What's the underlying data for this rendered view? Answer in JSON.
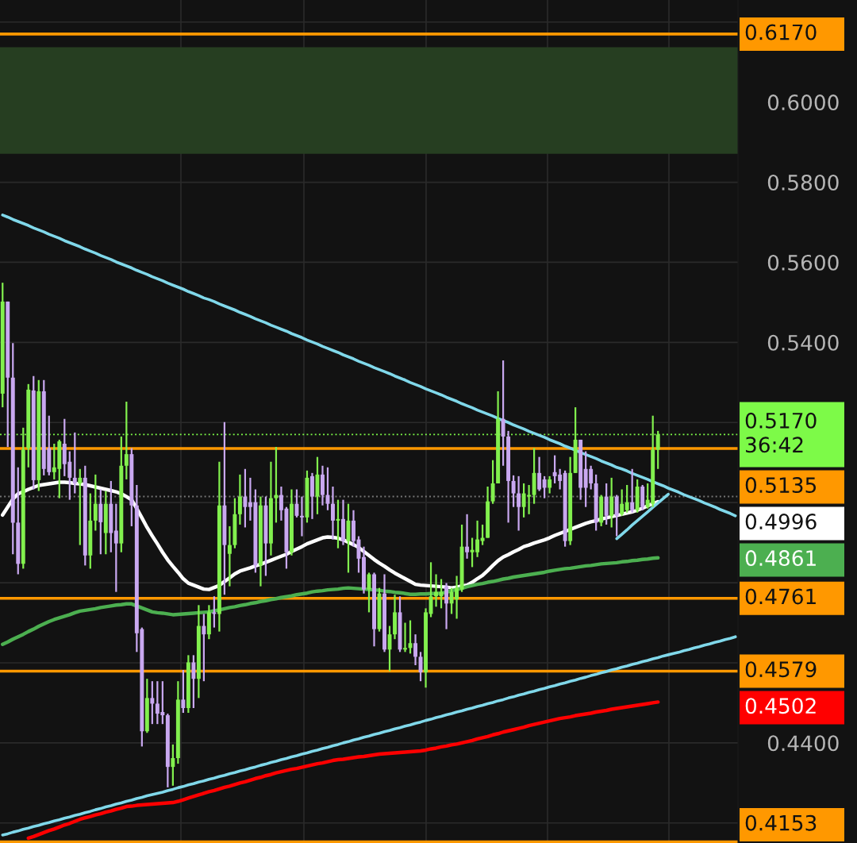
{
  "chart_data": {
    "type": "candlestick",
    "categories": [
      null,
      null,
      null,
      null,
      null,
      null,
      null,
      null,
      null,
      null,
      null,
      null,
      null,
      null,
      null,
      null,
      null,
      null,
      null,
      null,
      null,
      null,
      null,
      null,
      null,
      null,
      null,
      null,
      null,
      null,
      null,
      null,
      null,
      null,
      null,
      null,
      null,
      null,
      null,
      null,
      null,
      null,
      null,
      null,
      null,
      null,
      null,
      null,
      null,
      null,
      null,
      null,
      null,
      null,
      null,
      null,
      null,
      null,
      null,
      null,
      null,
      null,
      null,
      null,
      null,
      null,
      null,
      null,
      null,
      null,
      null,
      null,
      null,
      null,
      null,
      null,
      null,
      null,
      null,
      null,
      null,
      null,
      null,
      null,
      null,
      null,
      null,
      null,
      null,
      null,
      null,
      null,
      null,
      null,
      null,
      null,
      null,
      null,
      null,
      null,
      null,
      null,
      null,
      null,
      null,
      null,
      null,
      null,
      null,
      null,
      null,
      null,
      null,
      null,
      null,
      null,
      null,
      null,
      null,
      null,
      null,
      null,
      null,
      null,
      null,
      null,
      null,
      null,
      null,
      null,
      null,
      null,
      null,
      null,
      null,
      null,
      null,
      null,
      null,
      null,
      null,
      null,
      null
    ],
    "ohlc": [
      [
        0.5272,
        0.5549,
        0.5238,
        0.5502
      ],
      [
        0.5502,
        0.5502,
        0.5139,
        0.5312
      ],
      [
        0.5312,
        0.5398,
        0.4871,
        0.495
      ],
      [
        0.495,
        0.5088,
        0.4821,
        0.4847
      ],
      [
        0.4847,
        0.5187,
        0.4835,
        0.5132
      ],
      [
        0.5136,
        0.5296,
        0.5088,
        0.5282
      ],
      [
        0.528,
        0.5316,
        0.5033,
        0.5056
      ],
      [
        0.5056,
        0.5306,
        0.5029,
        0.5278
      ],
      [
        0.5278,
        0.5306,
        0.5068,
        0.5084
      ],
      [
        0.5136,
        0.5217,
        0.5068,
        0.5076
      ],
      [
        0.5076,
        0.5147,
        0.5058,
        0.5088
      ],
      [
        0.5084,
        0.5157,
        0.5011,
        0.5153
      ],
      [
        0.5147,
        0.5209,
        0.5066,
        0.5096
      ],
      [
        0.5102,
        0.5128,
        0.5007,
        0.5062
      ],
      [
        0.5062,
        0.5175,
        0.5023,
        0.5048
      ],
      [
        0.5048,
        0.5084,
        0.4894,
        0.5062
      ],
      [
        0.5062,
        0.5092,
        0.4843,
        0.4868
      ],
      [
        0.4868,
        0.5023,
        0.4835,
        0.4955
      ],
      [
        0.4955,
        0.507,
        0.493,
        0.4997
      ],
      [
        0.4997,
        0.5033,
        0.4871,
        0.4951
      ],
      [
        0.4924,
        0.5029,
        0.4871,
        0.4997
      ],
      [
        0.4997,
        0.5054,
        0.4876,
        0.4924
      ],
      [
        0.493,
        0.4997,
        0.4777,
        0.4898
      ],
      [
        0.4898,
        0.5165,
        0.4876,
        0.5092
      ],
      [
        0.5092,
        0.5252,
        0.5058,
        0.5121
      ],
      [
        0.5121,
        0.5136,
        0.4941,
        0.4993
      ],
      [
        0.4993,
        0.5044,
        0.4627,
        0.4674
      ],
      [
        0.4684,
        0.4688,
        0.4391,
        0.4429
      ],
      [
        0.4429,
        0.456,
        0.4425,
        0.4512
      ],
      [
        0.4512,
        0.4554,
        0.4447,
        0.4498
      ],
      [
        0.4498,
        0.4554,
        0.4447,
        0.4473
      ],
      [
        0.4477,
        0.4554,
        0.4447,
        0.4469
      ],
      [
        0.4469,
        0.4473,
        0.4289,
        0.434
      ],
      [
        0.434,
        0.4396,
        0.4293,
        0.4362
      ],
      [
        0.4362,
        0.4554,
        0.4348,
        0.4508
      ],
      [
        0.4508,
        0.4582,
        0.4475,
        0.4487
      ],
      [
        0.4487,
        0.4619,
        0.4475,
        0.4601
      ],
      [
        0.4601,
        0.4619,
        0.4487,
        0.456
      ],
      [
        0.456,
        0.4744,
        0.4512,
        0.4692
      ],
      [
        0.4692,
        0.4722,
        0.4554,
        0.4671
      ],
      [
        0.4671,
        0.4744,
        0.4659,
        0.4726
      ],
      [
        0.4726,
        0.4766,
        0.4688,
        0.4722
      ],
      [
        0.4722,
        0.5102,
        0.4678,
        0.4993
      ],
      [
        0.4993,
        0.5201,
        0.477,
        0.4894
      ],
      [
        0.4872,
        0.4941,
        0.4791,
        0.4894
      ],
      [
        0.4894,
        0.5011,
        0.4886,
        0.4971
      ],
      [
        0.4971,
        0.507,
        0.4945,
        0.5015
      ],
      [
        0.5015,
        0.5084,
        0.4938,
        0.4989
      ],
      [
        0.5001,
        0.5062,
        0.4955,
        0.4989
      ],
      [
        0.5001,
        0.5033,
        0.4825,
        0.4843
      ],
      [
        0.4843,
        0.5015,
        0.4791,
        0.4993
      ],
      [
        0.4993,
        0.5015,
        0.4817,
        0.4898
      ],
      [
        0.4898,
        0.5102,
        0.4868,
        0.5011
      ],
      [
        0.5011,
        0.5139,
        0.495,
        0.5019
      ],
      [
        0.5019,
        0.504,
        0.4955,
        0.4981
      ],
      [
        0.4985,
        0.4989,
        0.4835,
        0.4876
      ],
      [
        0.4876,
        0.5033,
        0.4868,
        0.4997
      ],
      [
        0.4997,
        0.5033,
        0.4963,
        0.4967
      ],
      [
        0.4967,
        0.5015,
        0.4916,
        0.4963
      ],
      [
        0.4963,
        0.508,
        0.495,
        0.5062
      ],
      [
        0.5066,
        0.5074,
        0.4959,
        0.5015
      ],
      [
        0.5015,
        0.5114,
        0.4971,
        0.507
      ],
      [
        0.507,
        0.5092,
        0.4993,
        0.5019
      ],
      [
        0.5019,
        0.5088,
        0.4981,
        0.4997
      ],
      [
        0.4997,
        0.504,
        0.4908,
        0.4955
      ],
      [
        0.4955,
        0.5007,
        0.4886,
        0.4959
      ],
      [
        0.4959,
        0.5007,
        0.4894,
        0.4904
      ],
      [
        0.4904,
        0.4997,
        0.4825,
        0.4955
      ],
      [
        0.4955,
        0.4981,
        0.489,
        0.4904
      ],
      [
        0.4908,
        0.4916,
        0.4825,
        0.486
      ],
      [
        0.4864,
        0.489,
        0.4773,
        0.4783
      ],
      [
        0.4783,
        0.4825,
        0.4726,
        0.4821
      ],
      [
        0.4821,
        0.4825,
        0.4641,
        0.4684
      ],
      [
        0.4684,
        0.4787,
        0.4678,
        0.4773
      ],
      [
        0.4773,
        0.4821,
        0.4627,
        0.4633
      ],
      [
        0.4633,
        0.4692,
        0.4579,
        0.4671
      ],
      [
        0.4671,
        0.477,
        0.4659,
        0.4726
      ],
      [
        0.4726,
        0.4766,
        0.4627,
        0.4633
      ],
      [
        0.4633,
        0.47,
        0.4627,
        0.4637
      ],
      [
        0.4637,
        0.4706,
        0.4623,
        0.4649
      ],
      [
        0.4649,
        0.4671,
        0.4594,
        0.4615
      ],
      [
        0.4615,
        0.4627,
        0.4554,
        0.4576
      ],
      [
        0.4576,
        0.4736,
        0.4538,
        0.4726
      ],
      [
        0.4722,
        0.4851,
        0.4714,
        0.4766
      ],
      [
        0.4766,
        0.4821,
        0.474,
        0.4777
      ],
      [
        0.4766,
        0.4809,
        0.4736,
        0.4777
      ],
      [
        0.4791,
        0.4799,
        0.4684,
        0.4748
      ],
      [
        0.4748,
        0.4787,
        0.4722,
        0.4777
      ],
      [
        0.4758,
        0.4817,
        0.471,
        0.4787
      ],
      [
        0.4783,
        0.4945,
        0.4777,
        0.489
      ],
      [
        0.489,
        0.4971,
        0.486,
        0.4876
      ],
      [
        0.4876,
        0.4912,
        0.4839,
        0.4882
      ],
      [
        0.4876,
        0.4955,
        0.4864,
        0.4908
      ],
      [
        0.4904,
        0.4945,
        0.4894,
        0.4912
      ],
      [
        0.4912,
        0.504,
        0.4912,
        0.5003
      ],
      [
        0.5003,
        0.5106,
        0.4997,
        0.5048
      ],
      [
        0.5048,
        0.5278,
        0.5048,
        0.5209
      ],
      [
        0.5209,
        0.5355,
        0.5092,
        0.5165
      ],
      [
        0.5165,
        0.5179,
        0.495,
        0.5054
      ],
      [
        0.5054,
        0.5068,
        0.4989,
        0.5023
      ],
      [
        0.5023,
        0.5066,
        0.493,
        0.4989
      ],
      [
        0.4989,
        0.5048,
        0.4963,
        0.5023
      ],
      [
        0.5015,
        0.5044,
        0.4971,
        0.5019
      ],
      [
        0.5019,
        0.5136,
        0.4997,
        0.5074
      ],
      [
        0.5074,
        0.5114,
        0.5029,
        0.5033
      ],
      [
        0.5058,
        0.5066,
        0.5011,
        0.5037
      ],
      [
        0.5037,
        0.5066,
        0.5023,
        0.5058
      ],
      [
        0.5076,
        0.5118,
        0.5048,
        0.5066
      ],
      [
        0.507,
        0.5084,
        0.5033,
        0.5054
      ],
      [
        0.5074,
        0.508,
        0.489,
        0.4904
      ],
      [
        0.4904,
        0.5114,
        0.4894,
        0.5074
      ],
      [
        0.5074,
        0.5238,
        0.5074,
        0.5157
      ],
      [
        0.5157,
        0.5157,
        0.5007,
        0.5037
      ],
      [
        0.5084,
        0.5128,
        0.4989,
        0.5037
      ],
      [
        0.5084,
        0.5092,
        0.5033,
        0.5048
      ],
      [
        0.5048,
        0.507,
        0.493,
        0.495
      ],
      [
        0.495,
        0.5019,
        0.4941,
        0.5015
      ],
      [
        0.5015,
        0.5048,
        0.4945,
        0.4967
      ],
      [
        0.4967,
        0.5062,
        0.4938,
        0.5015
      ],
      [
        0.5015,
        0.5019,
        0.4916,
        0.4967
      ],
      [
        0.4971,
        0.5033,
        0.4967,
        0.4997
      ],
      [
        0.4981,
        0.5044,
        0.4975,
        0.5001
      ],
      [
        0.5001,
        0.5084,
        0.4975,
        0.4981
      ],
      [
        0.4981,
        0.5058,
        0.4975,
        0.504
      ],
      [
        0.504,
        0.5044,
        0.4981,
        0.4989
      ],
      [
        0.4989,
        0.5048,
        0.4985,
        0.5007
      ],
      [
        0.4997,
        0.5217,
        0.4989,
        0.5132
      ],
      [
        0.5132,
        0.5179,
        0.5084,
        0.517
      ],
      null,
      null,
      null,
      null,
      null,
      null,
      null,
      null,
      null,
      null,
      null,
      null,
      null,
      null,
      null
    ],
    "colors": [
      "#82f04e",
      "#c9a8f0",
      "#c9a8f0",
      "#c9a8f0",
      "#82f04e",
      "#82f04e",
      "#c9a8f0",
      "#82f04e",
      "#c9a8f0",
      "#c9a8f0",
      "#82f04e",
      "#82f04e",
      "#c9a8f0",
      "#c9a8f0",
      "#c9a8f0",
      "#82f04e",
      "#c9a8f0",
      "#82f04e",
      "#82f04e",
      "#c9a8f0",
      "#82f04e",
      "#c9a8f0",
      "#c9a8f0",
      "#82f04e",
      "#82f04e",
      "#c9a8f0",
      "#c9a8f0",
      "#c9a8f0",
      "#82f04e",
      "#c9a8f0",
      "#c9a8f0",
      "#c9a8f0",
      "#c9a8f0",
      "#82f04e",
      "#82f04e",
      "#c9a8f0",
      "#82f04e",
      "#c9a8f0",
      "#82f04e",
      "#c9a8f0",
      "#82f04e",
      "#c9a8f0",
      "#82f04e",
      "#c9a8f0",
      "#82f04e",
      "#82f04e",
      "#82f04e",
      "#c9a8f0",
      "#c9a8f0",
      "#c9a8f0",
      "#82f04e",
      "#c9a8f0",
      "#82f04e",
      "#82f04e",
      "#c9a8f0",
      "#c9a8f0",
      "#82f04e",
      "#c9a8f0",
      "#c9a8f0",
      "#82f04e",
      "#c9a8f0",
      "#82f04e",
      "#c9a8f0",
      "#c9a8f0",
      "#c9a8f0",
      "#82f04e",
      "#c9a8f0",
      "#82f04e",
      "#c9a8f0",
      "#c9a8f0",
      "#c9a8f0",
      "#82f04e",
      "#c9a8f0",
      "#82f04e",
      "#c9a8f0",
      "#82f04e",
      "#82f04e",
      "#c9a8f0",
      "#82f04e",
      "#82f04e",
      "#c9a8f0",
      "#c9a8f0",
      "#82f04e",
      "#82f04e",
      "#82f04e",
      "#82f04e",
      "#c9a8f0",
      "#82f04e",
      "#82f04e",
      "#82f04e",
      "#c9a8f0",
      "#82f04e",
      "#82f04e",
      "#82f04e",
      "#82f04e",
      "#82f04e",
      "#82f04e",
      "#c9a8f0",
      "#c9a8f0",
      "#c9a8f0",
      "#c9a8f0",
      "#82f04e",
      "#82f04e",
      "#82f04e",
      "#c9a8f0",
      "#c9a8f0",
      "#82f04e",
      "#c9a8f0",
      "#c9a8f0",
      "#c9a8f0",
      "#82f04e",
      "#82f04e",
      "#c9a8f0",
      "#c9a8f0",
      "#c9a8f0",
      "#c9a8f0",
      "#82f04e",
      "#c9a8f0",
      "#82f04e",
      "#c9a8f0",
      "#82f04e",
      "#82f04e",
      "#c9a8f0",
      "#82f04e",
      "#c9a8f0",
      "#82f04e",
      "#82f04e",
      "#82f04e",
      null,
      null,
      null,
      null,
      null,
      null,
      null,
      null,
      null,
      null,
      null,
      null,
      null,
      null,
      null
    ],
    "series": [
      {
        "type": "line",
        "name": "0.4996",
        "color": "#ffffff",
        "values": [
          0.4969,
          0.4989,
          0.5009,
          0.5022,
          0.5027,
          0.5033,
          0.5038,
          0.5043,
          0.5045,
          0.5047,
          0.5049,
          0.5051,
          0.5051,
          0.505,
          0.5048,
          0.5047,
          0.5045,
          0.5042,
          0.5039,
          0.5036,
          0.5033,
          0.503,
          0.5027,
          0.5022,
          0.5015,
          0.5007,
          0.4985,
          0.4962,
          0.4938,
          0.4917,
          0.4897,
          0.4876,
          0.4857,
          0.4841,
          0.4826,
          0.481,
          0.4799,
          0.4794,
          0.4789,
          0.4784,
          0.4783,
          0.4788,
          0.4793,
          0.4803,
          0.4812,
          0.4822,
          0.4829,
          0.4833,
          0.4837,
          0.4842,
          0.4846,
          0.4851,
          0.4856,
          0.4861,
          0.4866,
          0.4871,
          0.4878,
          0.4884,
          0.489,
          0.4897,
          0.4902,
          0.4907,
          0.4912,
          0.4914,
          0.4913,
          0.4911,
          0.4907,
          0.4901,
          0.4895,
          0.4888,
          0.4878,
          0.4868,
          0.4858,
          0.4849,
          0.4841,
          0.4832,
          0.4824,
          0.4817,
          0.481,
          0.4803,
          0.4796,
          0.4794,
          0.4793,
          0.4792,
          0.4791,
          0.479,
          0.4789,
          0.4787,
          0.4789,
          0.4792,
          0.4794,
          0.4801,
          0.481,
          0.4818,
          0.483,
          0.4843,
          0.4855,
          0.4864,
          0.487,
          0.4877,
          0.4883,
          0.489,
          0.4894,
          0.4899,
          0.4903,
          0.4907,
          0.4912,
          0.4918,
          0.4923,
          0.4928,
          0.4933,
          0.4938,
          0.4943,
          0.4948,
          0.4952,
          0.4955,
          0.4959,
          0.4962,
          0.4965,
          0.4968,
          0.4971,
          0.4974,
          0.4977,
          0.4981,
          0.4986,
          0.4992,
          0.4997,
          0.5002,
          null,
          null,
          null,
          null,
          null,
          null,
          null,
          null,
          null,
          null,
          null,
          null,
          null,
          null,
          null
        ]
      },
      {
        "type": "line",
        "name": "0.4861",
        "color": "#4caf50",
        "values": [
          0.4646,
          0.4652,
          0.4659,
          0.4665,
          0.4671,
          0.4678,
          0.4684,
          0.4691,
          0.4697,
          0.4703,
          0.4708,
          0.4712,
          0.4716,
          0.472,
          0.4725,
          0.4729,
          0.4731,
          0.4733,
          0.4735,
          0.4738,
          0.474,
          0.4742,
          0.4744,
          0.4745,
          0.4747,
          0.4747,
          0.4742,
          0.4737,
          0.4732,
          0.4727,
          0.4725,
          0.4724,
          0.4722,
          0.472,
          0.4721,
          0.4722,
          0.4723,
          0.4724,
          0.4725,
          0.4726,
          0.4727,
          0.473,
          0.4732,
          0.4735,
          0.4738,
          0.474,
          0.4743,
          0.4745,
          0.4748,
          0.475,
          0.4753,
          0.4755,
          0.4758,
          0.476,
          0.4763,
          0.4765,
          0.4767,
          0.477,
          0.4772,
          0.4774,
          0.4777,
          0.4779,
          0.478,
          0.4782,
          0.4783,
          0.4784,
          0.4786,
          0.4787,
          0.4786,
          0.4785,
          0.4784,
          0.4783,
          0.4782,
          0.4781,
          0.4779,
          0.4778,
          0.4776,
          0.4775,
          0.4773,
          0.4771,
          0.4771,
          0.4772,
          0.4772,
          0.4773,
          0.4773,
          0.4774,
          0.4776,
          0.478,
          0.4783,
          0.4786,
          0.479,
          0.4793,
          0.4796,
          0.4798,
          0.4801,
          0.4803,
          0.4806,
          0.4809,
          0.4811,
          0.4814,
          0.4816,
          0.4818,
          0.482,
          0.4822,
          0.4824,
          0.4826,
          0.4829,
          0.4831,
          0.4833,
          0.4835,
          0.4836,
          0.4838,
          0.484,
          0.4842,
          0.4843,
          0.4845,
          0.4847,
          0.4848,
          0.4849,
          0.485,
          0.4852,
          0.4853,
          0.4855,
          0.4856,
          0.4858,
          0.4859,
          0.4861,
          0.4862,
          null,
          null,
          null,
          null,
          null,
          null,
          null,
          null,
          null,
          null,
          null,
          null,
          null,
          null,
          null
        ]
      },
      {
        "type": "line",
        "name": "0.4502",
        "color": "#ff0000",
        "values": [
          null,
          null,
          null,
          null,
          null,
          0.4162,
          0.4166,
          0.4171,
          0.4176,
          0.4181,
          0.4185,
          0.419,
          0.4195,
          0.4199,
          0.4204,
          0.4209,
          0.4213,
          0.4216,
          0.422,
          0.4223,
          0.4227,
          0.423,
          0.4234,
          0.4237,
          0.4241,
          0.4242,
          0.4244,
          0.4245,
          0.4246,
          0.4247,
          0.4248,
          0.4249,
          0.425,
          0.4251,
          0.4254,
          0.4258,
          0.4262,
          0.4266,
          0.427,
          0.4274,
          0.4278,
          0.4281,
          0.4285,
          0.4289,
          0.4292,
          0.4296,
          0.43,
          0.4303,
          0.4307,
          0.4311,
          0.4314,
          0.4318,
          0.4321,
          0.4325,
          0.4328,
          0.4331,
          0.4334,
          0.4336,
          0.4339,
          0.4342,
          0.4345,
          0.4348,
          0.435,
          0.4353,
          0.4356,
          0.4358,
          0.4359,
          0.4361,
          0.4363,
          0.4365,
          0.4366,
          0.4368,
          0.437,
          0.4372,
          0.4373,
          0.4374,
          0.4375,
          0.4376,
          0.4377,
          0.4378,
          0.4379,
          0.438,
          0.4382,
          0.4385,
          0.4387,
          0.439,
          0.4392,
          0.4395,
          0.4397,
          0.44,
          0.4403,
          0.4406,
          0.441,
          0.4413,
          0.4416,
          0.442,
          0.4423,
          0.4427,
          0.443,
          0.4433,
          0.4436,
          0.4439,
          0.4443,
          0.4446,
          0.4449,
          0.4452,
          0.4455,
          0.4458,
          0.4461,
          0.4463,
          0.4465,
          0.4468,
          0.447,
          0.4472,
          0.4474,
          0.4477,
          0.4479,
          0.4481,
          0.4484,
          0.4486,
          0.4488,
          0.449,
          0.4492,
          0.4494,
          0.4496,
          0.4498,
          0.45,
          0.4502,
          null,
          null,
          null,
          null,
          null,
          null,
          null,
          null,
          null,
          null,
          null,
          null,
          null,
          null,
          null
        ]
      },
      {
        "type": "line",
        "color": "#80d8ea",
        "values": [
          0.5718,
          0.5713,
          0.5707,
          0.5702,
          0.5697,
          0.5692,
          0.5686,
          0.5681,
          0.5676,
          0.567,
          0.5665,
          0.566,
          0.5654,
          0.5649,
          0.5644,
          0.5639,
          0.5633,
          0.5628,
          0.5623,
          0.5617,
          0.5612,
          0.5607,
          0.5601,
          0.5596,
          0.5591,
          0.5586,
          0.558,
          0.5575,
          0.557,
          0.5564,
          0.5559,
          0.5554,
          0.5548,
          0.5543,
          0.5538,
          0.5533,
          0.5527,
          0.5522,
          0.5517,
          0.5511,
          0.5507,
          0.5502,
          0.5496,
          0.5491,
          0.5486,
          0.5481,
          0.5475,
          0.547,
          0.5465,
          0.5459,
          0.5454,
          0.5449,
          0.5443,
          0.5438,
          0.5433,
          0.5428,
          0.5422,
          0.5417,
          0.5412,
          0.5406,
          0.5401,
          0.5396,
          0.539,
          0.5385,
          0.538,
          0.5375,
          0.5369,
          0.5364,
          0.5359,
          0.5353,
          0.5348,
          0.5343,
          0.5337,
          0.5332,
          0.5327,
          0.5322,
          0.5316,
          0.5311,
          0.5306,
          0.53,
          0.5295,
          0.529,
          0.5284,
          0.5279,
          0.5274,
          0.5269,
          0.5263,
          0.5258,
          0.5253,
          0.5247,
          0.5242,
          0.5237,
          0.5231,
          0.5226,
          0.5221,
          0.5216,
          0.521,
          0.5205,
          0.52,
          0.5194,
          0.5189,
          0.5184,
          0.5178,
          0.5173,
          0.5168,
          0.5163,
          0.5157,
          0.5152,
          0.5147,
          0.5141,
          0.5136,
          0.5131,
          0.5125,
          0.512,
          0.5115,
          0.511,
          0.5104,
          0.5099,
          0.5094,
          0.5088,
          0.5084,
          0.5079,
          0.5073,
          0.5068,
          0.5063,
          0.5058,
          0.5052,
          0.5047,
          0.5042,
          0.5036,
          0.5031,
          0.5026,
          0.502,
          0.5015,
          0.501,
          0.5005,
          0.4999,
          0.4994,
          0.4989,
          0.4983,
          0.4978,
          0.4973,
          0.4967
        ]
      },
      {
        "type": "line",
        "color": "#80d8ea",
        "values": [
          0.417,
          0.4173,
          0.4177,
          0.418,
          0.4184,
          0.4187,
          0.4191,
          0.4194,
          0.4198,
          0.4201,
          0.4205,
          0.4208,
          0.4212,
          0.4215,
          0.4219,
          0.4222,
          0.4226,
          0.4229,
          0.4233,
          0.4236,
          0.424,
          0.4243,
          0.4247,
          0.425,
          0.4254,
          0.4257,
          0.4261,
          0.4264,
          0.4268,
          0.4271,
          0.4274,
          0.4277,
          0.4281,
          0.4284,
          0.4288,
          0.4291,
          0.4295,
          0.4298,
          0.4302,
          0.4305,
          0.4309,
          0.4312,
          0.4316,
          0.4319,
          0.4323,
          0.4326,
          0.433,
          0.4333,
          0.4337,
          0.434,
          0.4344,
          0.4347,
          0.4351,
          0.4354,
          0.4358,
          0.4361,
          0.4365,
          0.4368,
          0.4372,
          0.4375,
          0.4379,
          0.4382,
          0.4386,
          0.4389,
          0.4393,
          0.4396,
          0.44,
          0.4403,
          0.4407,
          0.441,
          0.4414,
          0.4417,
          0.4421,
          0.4424,
          0.4428,
          0.4431,
          0.4435,
          0.4438,
          0.4442,
          0.4445,
          0.4449,
          0.4452,
          0.4456,
          0.4459,
          0.4463,
          0.4466,
          0.447,
          0.4473,
          0.4477,
          0.448,
          0.4484,
          0.4487,
          0.4491,
          0.4494,
          0.4498,
          0.4501,
          0.4505,
          0.4508,
          0.4512,
          0.4515,
          0.4519,
          0.4522,
          0.4526,
          0.4529,
          0.4533,
          0.4536,
          0.454,
          0.4543,
          0.4547,
          0.455,
          0.4554,
          0.4557,
          0.4561,
          0.4564,
          0.4568,
          0.4571,
          0.4575,
          0.4578,
          0.4582,
          0.4585,
          0.4589,
          0.4592,
          0.4596,
          0.4599,
          0.4603,
          0.4606,
          0.461,
          0.4613,
          0.4617,
          0.462,
          0.4623,
          0.4626,
          0.463,
          0.4633,
          0.4637,
          0.464,
          0.4644,
          0.4647,
          0.4651,
          0.4654,
          0.4658,
          0.4661,
          0.4665
        ]
      },
      {
        "type": "line",
        "color": "#80d8ea",
        "values": [
          null,
          null,
          null,
          null,
          null,
          null,
          null,
          null,
          null,
          null,
          null,
          null,
          null,
          null,
          null,
          null,
          null,
          null,
          null,
          null,
          null,
          null,
          null,
          null,
          null,
          null,
          null,
          null,
          null,
          null,
          null,
          null,
          null,
          null,
          null,
          null,
          null,
          null,
          null,
          null,
          null,
          null,
          null,
          null,
          null,
          null,
          null,
          null,
          null,
          null,
          null,
          null,
          null,
          null,
          null,
          null,
          null,
          null,
          null,
          null,
          null,
          null,
          null,
          null,
          null,
          null,
          null,
          null,
          null,
          null,
          null,
          null,
          null,
          null,
          null,
          null,
          null,
          null,
          null,
          null,
          null,
          null,
          null,
          null,
          null,
          null,
          null,
          null,
          null,
          null,
          null,
          null,
          null,
          null,
          null,
          null,
          null,
          null,
          null,
          null,
          null,
          null,
          null,
          null,
          null,
          null,
          null,
          null,
          null,
          null,
          null,
          null,
          null,
          null,
          null,
          null,
          null,
          null,
          null,
          0.491,
          0.4921,
          0.4932,
          0.4944,
          0.4955,
          0.4966,
          0.4977,
          0.4988,
          0.4999,
          0.501,
          0.5021,
          null,
          null,
          null,
          null,
          null,
          null,
          null,
          null,
          null,
          null,
          null,
          null,
          null
        ]
      }
    ],
    "ref_lines": [
      {
        "axis": "y",
        "value": 0.617,
        "label": "0.6170",
        "color": "#ff9800",
        "line_style": "solid"
      },
      {
        "axis": "y",
        "value": 0.517,
        "label": "0.5170\n36:42",
        "color": "#7dfa48",
        "line_style": "dotted"
      },
      {
        "axis": "y",
        "value": 0.5135,
        "label": "0.5135",
        "color": "#ff9800",
        "line_style": "solid"
      },
      {
        "axis": "y",
        "value": 0.5015,
        "color": "#777777",
        "line_style": "dotted"
      },
      {
        "axis": "y",
        "value": 0.4761,
        "label": "0.4761",
        "color": "#ff9800",
        "line_style": "solid"
      },
      {
        "axis": "y",
        "value": 0.4579,
        "label": "0.4579",
        "color": "#ff9800",
        "line_style": "solid"
      },
      {
        "axis": "y",
        "value": 0.4153,
        "label": "0.4153",
        "color": "#ff9800",
        "line_style": "solid"
      }
    ],
    "bands": [
      {
        "axis": "y",
        "from": 0.5871,
        "to": 0.6137,
        "color": "#263e21"
      }
    ],
    "ylim": [
      0.415,
      0.6255
    ],
    "yticks": [
      {
        "value": 0.42,
        "label": null
      },
      {
        "value": 0.44,
        "label": "0.4400"
      },
      {
        "value": 0.46,
        "label": null
      },
      {
        "value": 0.48,
        "label": null
      },
      {
        "value": 0.5,
        "label": null
      },
      {
        "value": 0.52,
        "label": null
      },
      {
        "value": 0.54,
        "label": "0.5400"
      },
      {
        "value": 0.56,
        "label": "0.5600"
      },
      {
        "value": 0.58,
        "label": "0.5800"
      },
      {
        "value": 0.6,
        "label": "0.6000"
      },
      {
        "value": 0.62,
        "label": null
      }
    ],
    "legend": "right",
    "tick_labels": "y",
    "grid": "y"
  }
}
